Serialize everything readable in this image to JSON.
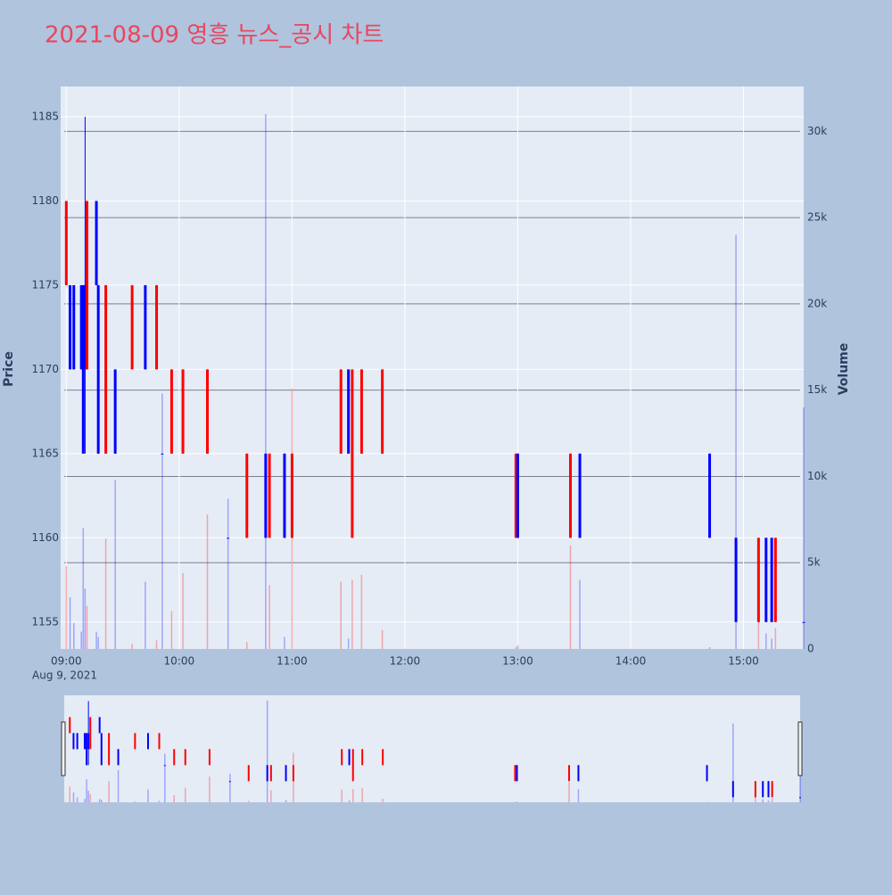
{
  "chart_data": {
    "type": "candlestick",
    "title": "2021-08-09 영흥 뉴스_공시 차트",
    "y_label": "Price",
    "y2_label": "Volume",
    "x_date_label": "Aug 9, 2021",
    "increasing_color": "#ff0000",
    "decreasing_color": "#0000ff",
    "x": [
      "09:00",
      "09:02",
      "09:04",
      "09:08",
      "09:09",
      "09:10",
      "09:11",
      "09:16",
      "09:17",
      "09:21",
      "09:26",
      "09:35",
      "09:42",
      "09:48",
      "09:51",
      "09:56",
      "10:02",
      "10:15",
      "10:26",
      "10:36",
      "10:46",
      "10:48",
      "10:56",
      "11:00",
      "11:26",
      "11:30",
      "11:32",
      "11:37",
      "11:48",
      "12:59",
      "13:00",
      "13:28",
      "13:33",
      "14:42",
      "14:56",
      "15:08",
      "15:12",
      "15:15",
      "15:17",
      "15:32"
    ],
    "open": [
      1175,
      1175,
      1175,
      1175,
      1175,
      1175,
      1170,
      1180,
      1175,
      1165,
      1170,
      1170,
      1175,
      1170,
      1165,
      1165,
      1165,
      1165,
      1160,
      1160,
      1165,
      1160,
      1165,
      1160,
      1165,
      1170,
      1160,
      1165,
      1165,
      1160,
      1165,
      1160,
      1165,
      1165,
      1160,
      1155,
      1160,
      1160,
      1155,
      1155
    ],
    "high": [
      1180,
      1175,
      1175,
      1175,
      1175,
      1185,
      1180,
      1180,
      1175,
      1175,
      1170,
      1175,
      1175,
      1175,
      1165,
      1170,
      1170,
      1170,
      1160,
      1165,
      1165,
      1165,
      1165,
      1165,
      1170,
      1170,
      1170,
      1170,
      1170,
      1165,
      1165,
      1165,
      1165,
      1165,
      1160,
      1160,
      1160,
      1160,
      1160,
      1155
    ],
    "low": [
      1175,
      1170,
      1170,
      1170,
      1165,
      1165,
      1170,
      1175,
      1165,
      1165,
      1165,
      1170,
      1170,
      1170,
      1165,
      1165,
      1165,
      1165,
      1160,
      1160,
      1160,
      1160,
      1160,
      1160,
      1165,
      1165,
      1160,
      1165,
      1165,
      1160,
      1160,
      1160,
      1160,
      1160,
      1155,
      1155,
      1155,
      1155,
      1155,
      1155
    ],
    "close": [
      1180,
      1170,
      1170,
      1170,
      1165,
      1170,
      1180,
      1175,
      1165,
      1175,
      1165,
      1175,
      1170,
      1175,
      1165,
      1170,
      1170,
      1170,
      1160,
      1165,
      1160,
      1165,
      1160,
      1165,
      1170,
      1165,
      1170,
      1170,
      1170,
      1165,
      1160,
      1165,
      1160,
      1160,
      1155,
      1160,
      1155,
      1155,
      1160,
      1155
    ],
    "volume": [
      4800,
      3000,
      1500,
      1000,
      7000,
      3500,
      2500,
      1000,
      700,
      6400,
      9800,
      300,
      3900,
      500,
      14800,
      2200,
      4400,
      7800,
      8700,
      400,
      31000,
      3700,
      700,
      15100,
      3900,
      600,
      4000,
      4300,
      1100,
      100,
      200,
      6000,
      4000,
      100,
      24000,
      2000,
      900,
      600,
      1200,
      14000
    ],
    "xlim": [
      "08:57",
      "15:32"
    ],
    "xticks": [
      "09:00",
      "10:00",
      "11:00",
      "12:00",
      "13:00",
      "14:00",
      "15:00"
    ],
    "ylim": [
      1153.4,
      1186.8
    ],
    "yticks": [
      1155,
      1160,
      1165,
      1170,
      1175,
      1180,
      1185
    ],
    "y2lim": [
      0,
      32600
    ],
    "y2ticks": [
      0,
      {
        "value": 5000,
        "label": "5k"
      },
      {
        "value": 10000,
        "label": "10k"
      },
      {
        "value": 15000,
        "label": "15k"
      },
      {
        "value": 20000,
        "label": "20k"
      },
      {
        "value": 25000,
        "label": "25k"
      },
      {
        "value": 30000,
        "label": "30k"
      }
    ]
  }
}
